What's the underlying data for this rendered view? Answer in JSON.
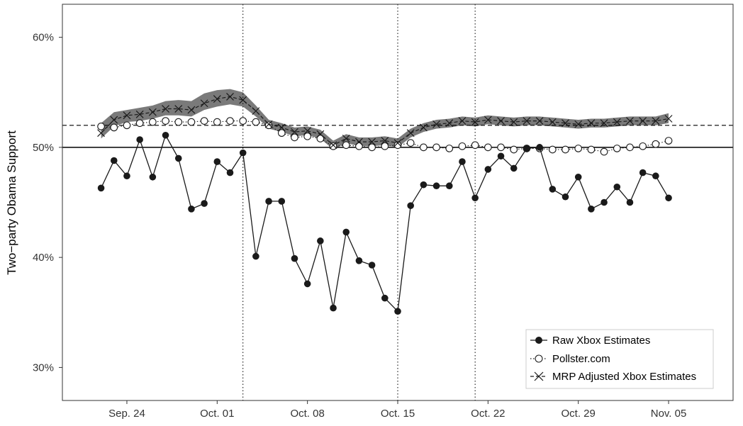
{
  "chart_data": {
    "type": "line",
    "title": "",
    "ylabel": "Two−party Obama Support",
    "xlabel": "",
    "ylim": [
      27,
      63
    ],
    "yticks": [
      30,
      40,
      50,
      60
    ],
    "ytick_labels": [
      "30%",
      "40%",
      "50%",
      "60%"
    ],
    "xticks": [
      3,
      10,
      17,
      24,
      31,
      38,
      45
    ],
    "xtick_labels": [
      "Sep. 24",
      "Oct. 01",
      "Oct. 08",
      "Oct. 15",
      "Oct. 22",
      "Oct. 29",
      "Nov. 05"
    ],
    "xlim": [
      -2,
      50
    ],
    "x": [
      1,
      2,
      3,
      4,
      5,
      6,
      7,
      8,
      9,
      10,
      11,
      12,
      13,
      14,
      15,
      16,
      17,
      18,
      19,
      20,
      21,
      22,
      23,
      24,
      25,
      26,
      27,
      28,
      29,
      30,
      31,
      32,
      33,
      34,
      35,
      36,
      37,
      38,
      39,
      40,
      41,
      42,
      43,
      44,
      45
    ],
    "reference_lines": {
      "horizontal_solid": 50,
      "horizontal_dashed": 52,
      "vertical_dotted": [
        12,
        24,
        30
      ]
    },
    "series": [
      {
        "name": "Raw Xbox Estimates",
        "style": "solid-filled-circle",
        "values": [
          46.3,
          48.8,
          47.4,
          50.7,
          47.3,
          51.1,
          49.0,
          44.4,
          44.9,
          48.7,
          47.7,
          49.5,
          40.1,
          45.1,
          45.1,
          39.9,
          37.6,
          41.5,
          35.4,
          42.3,
          39.7,
          39.3,
          36.3,
          35.1,
          44.7,
          46.6,
          46.5,
          46.5,
          48.7,
          45.4,
          48.0,
          49.2,
          48.1,
          49.9,
          50.0,
          46.2,
          45.5,
          47.3,
          44.4,
          45.0,
          46.4,
          45.0,
          47.7,
          47.4,
          45.4
        ]
      },
      {
        "name": "Pollster.com",
        "style": "dotted-open-circle",
        "values": [
          51.9,
          51.8,
          52.0,
          52.2,
          52.3,
          52.4,
          52.3,
          52.3,
          52.4,
          52.3,
          52.4,
          52.4,
          52.3,
          52.0,
          51.3,
          50.9,
          51.0,
          50.8,
          50.1,
          50.2,
          50.1,
          50.0,
          50.1,
          50.2,
          50.4,
          50.0,
          50.0,
          49.9,
          50.1,
          50.2,
          50.0,
          50.0,
          49.8,
          49.9,
          49.9,
          49.8,
          49.8,
          49.9,
          49.8,
          49.6,
          49.9,
          50.0,
          50.1,
          50.3,
          50.6
        ]
      },
      {
        "name": "MRP Adjusted Xbox Estimates",
        "style": "dashed-cross",
        "values": [
          51.3,
          52.5,
          52.9,
          53.0,
          53.2,
          53.5,
          53.5,
          53.4,
          54.0,
          54.4,
          54.6,
          54.3,
          53.3,
          52.1,
          51.8,
          51.4,
          51.5,
          51.2,
          50.2,
          50.8,
          50.5,
          50.5,
          50.6,
          50.4,
          51.3,
          51.8,
          52.1,
          52.2,
          52.4,
          52.3,
          52.5,
          52.4,
          52.3,
          52.4,
          52.4,
          52.3,
          52.2,
          52.1,
          52.2,
          52.2,
          52.3,
          52.4,
          52.4,
          52.4,
          52.6
        ],
        "band_lower": [
          50.8,
          51.9,
          52.3,
          52.4,
          52.6,
          52.9,
          52.9,
          52.8,
          53.4,
          53.7,
          53.9,
          53.7,
          52.8,
          51.7,
          51.4,
          51.0,
          51.1,
          50.8,
          49.8,
          50.4,
          50.1,
          50.1,
          50.2,
          50.0,
          50.9,
          51.4,
          51.7,
          51.8,
          52.0,
          51.9,
          52.1,
          52.0,
          51.9,
          52.0,
          52.0,
          51.9,
          51.8,
          51.7,
          51.8,
          51.8,
          51.9,
          52.0,
          52.0,
          52.0,
          52.2
        ],
        "band_upper": [
          52.2,
          53.2,
          53.4,
          53.6,
          53.8,
          54.2,
          54.3,
          54.2,
          54.9,
          55.2,
          55.3,
          55.0,
          53.8,
          52.5,
          52.2,
          51.8,
          51.9,
          51.6,
          50.6,
          51.2,
          50.9,
          50.9,
          51.0,
          50.8,
          51.7,
          52.2,
          52.5,
          52.6,
          52.8,
          52.7,
          52.9,
          52.8,
          52.7,
          52.8,
          52.8,
          52.7,
          52.6,
          52.5,
          52.6,
          52.6,
          52.7,
          52.8,
          52.8,
          52.8,
          53.1
        ]
      }
    ],
    "legend": {
      "position": "bottom-right",
      "border": true
    },
    "grid": false,
    "colors": {
      "line": "#1a1a1a",
      "band": "#7a7a7a",
      "axis": "#333333"
    }
  }
}
